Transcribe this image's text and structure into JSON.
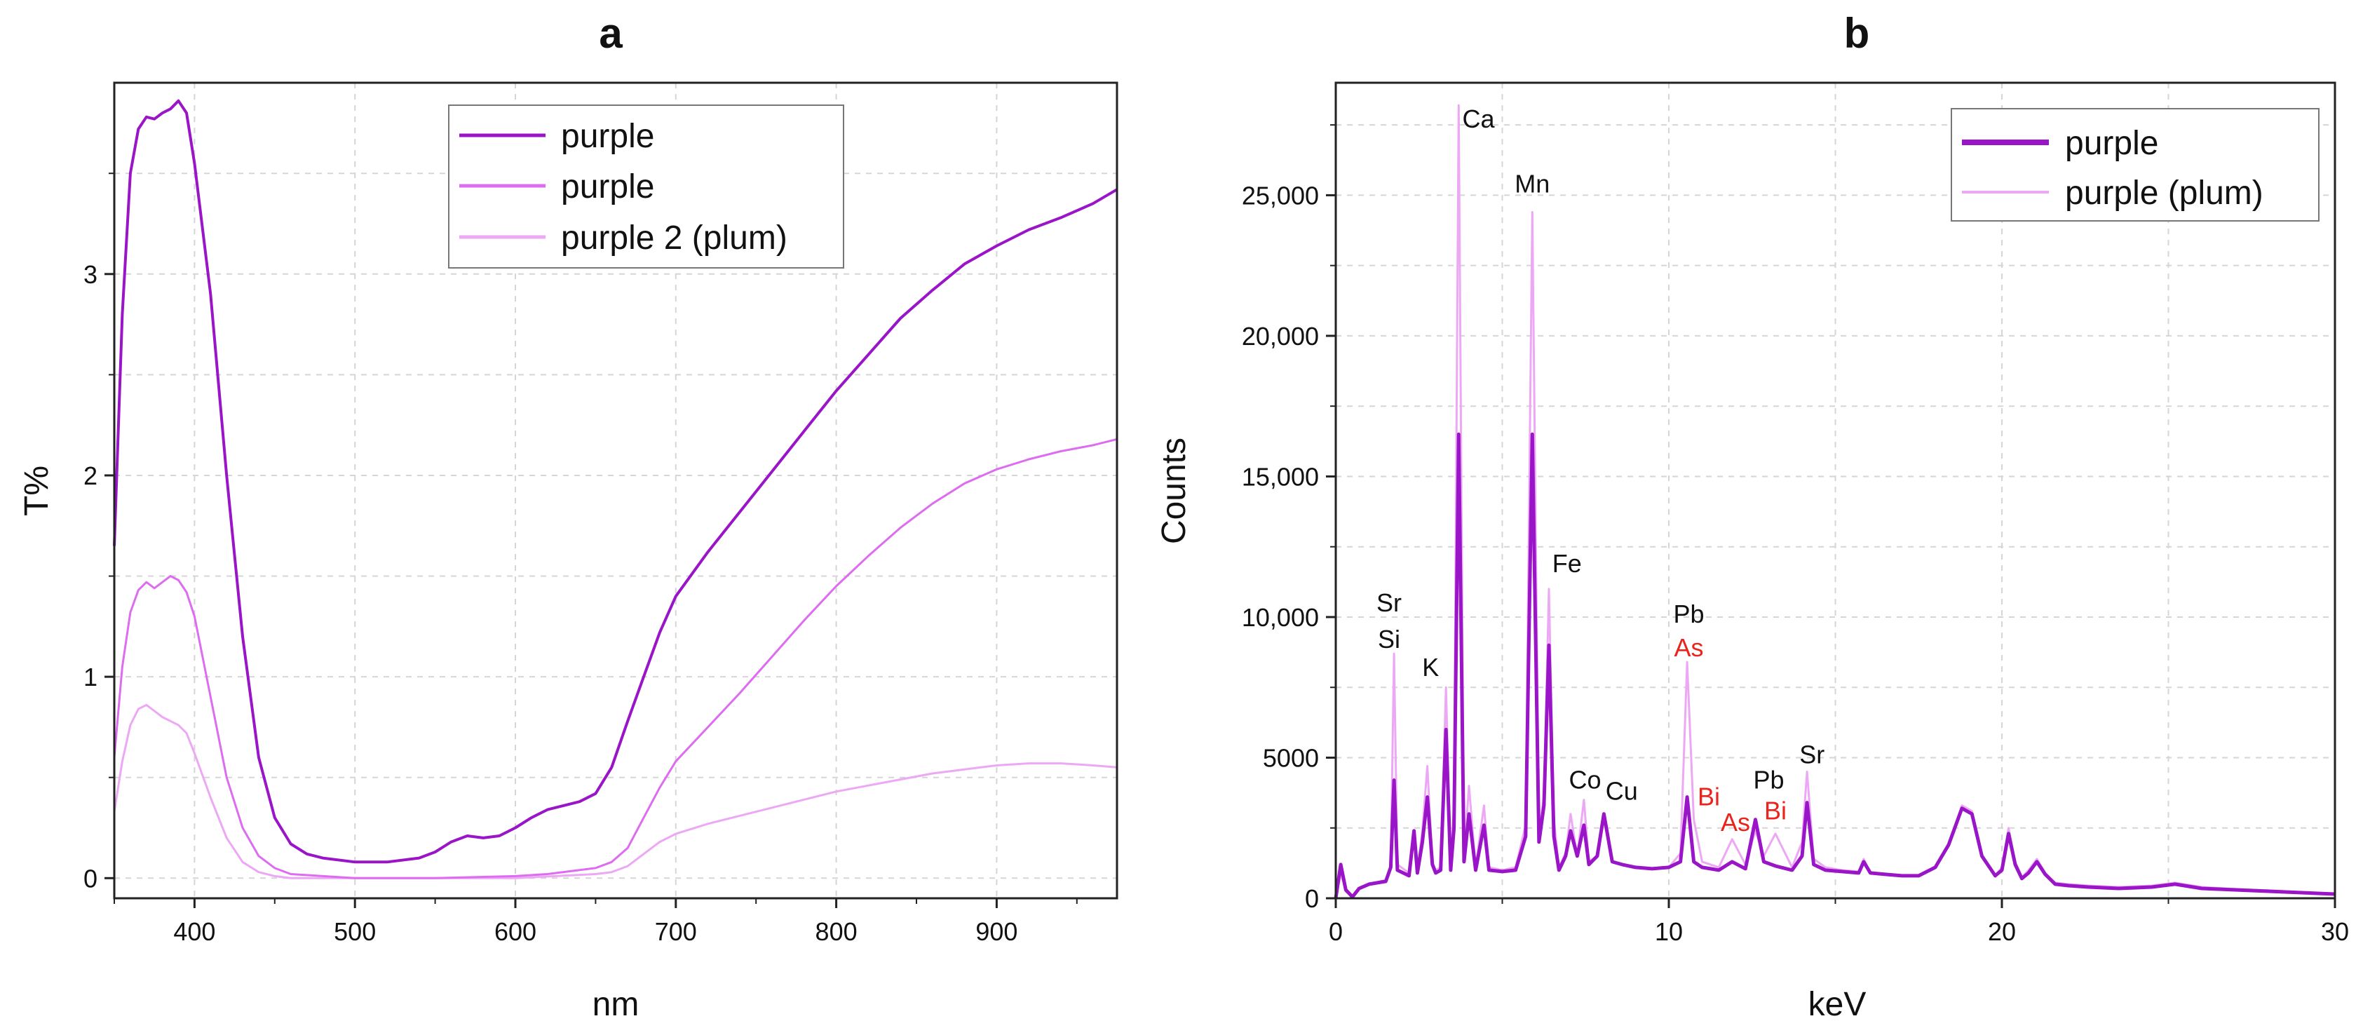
{
  "colors": {
    "dark": "#9a14c8",
    "medium": "#dd6cf0",
    "light": "#eda8f5",
    "red_label": "#e8241c",
    "black_label": "#111111"
  },
  "chart_data": [
    {
      "id": "a",
      "type": "line",
      "panel_label": "a",
      "title": "",
      "xlabel": "nm",
      "ylabel": "T%",
      "xlim": [
        350,
        975
      ],
      "ylim": [
        -0.1,
        3.95
      ],
      "xticks": [
        400,
        500,
        600,
        700,
        800,
        900
      ],
      "xtick_labels": [
        "400",
        "500",
        "600",
        "700",
        "800",
        "900"
      ],
      "yticks": [
        0,
        1,
        2,
        3
      ],
      "ytick_labels": [
        "0",
        "1",
        "2",
        "3"
      ],
      "grid": true,
      "legend_position": "top-right",
      "legend": [
        "purple",
        "purple",
        "purple 2 (plum)"
      ],
      "series": [
        {
          "name": "purple",
          "color": "#9a14c8",
          "x": [
            350,
            355,
            360,
            365,
            370,
            375,
            380,
            385,
            390,
            395,
            400,
            410,
            420,
            430,
            440,
            450,
            460,
            470,
            480,
            500,
            520,
            540,
            550,
            560,
            570,
            580,
            590,
            600,
            610,
            620,
            640,
            650,
            660,
            670,
            680,
            690,
            700,
            720,
            740,
            760,
            780,
            800,
            820,
            840,
            860,
            880,
            900,
            920,
            940,
            960,
            975
          ],
          "y": [
            1.65,
            2.8,
            3.5,
            3.72,
            3.78,
            3.77,
            3.8,
            3.82,
            3.86,
            3.8,
            3.55,
            2.9,
            2.0,
            1.2,
            0.6,
            0.3,
            0.17,
            0.12,
            0.1,
            0.08,
            0.08,
            0.1,
            0.13,
            0.18,
            0.21,
            0.2,
            0.21,
            0.25,
            0.3,
            0.34,
            0.38,
            0.42,
            0.55,
            0.78,
            1.0,
            1.22,
            1.4,
            1.62,
            1.82,
            2.02,
            2.22,
            2.42,
            2.6,
            2.78,
            2.92,
            3.05,
            3.14,
            3.22,
            3.28,
            3.35,
            3.42
          ]
        },
        {
          "name": "purple",
          "color": "#dd6cf0",
          "x": [
            350,
            355,
            360,
            365,
            370,
            375,
            380,
            385,
            390,
            395,
            400,
            410,
            420,
            430,
            440,
            450,
            460,
            480,
            500,
            550,
            600,
            620,
            650,
            660,
            670,
            680,
            690,
            700,
            720,
            740,
            760,
            780,
            800,
            820,
            840,
            860,
            880,
            900,
            920,
            940,
            960,
            975
          ],
          "y": [
            0.6,
            1.05,
            1.32,
            1.43,
            1.47,
            1.44,
            1.47,
            1.5,
            1.48,
            1.42,
            1.3,
            0.9,
            0.5,
            0.25,
            0.11,
            0.05,
            0.02,
            0.01,
            0.0,
            0.0,
            0.01,
            0.02,
            0.05,
            0.08,
            0.15,
            0.3,
            0.45,
            0.58,
            0.75,
            0.92,
            1.1,
            1.28,
            1.45,
            1.6,
            1.74,
            1.86,
            1.96,
            2.03,
            2.08,
            2.12,
            2.15,
            2.18
          ]
        },
        {
          "name": "purple 2 (plum)",
          "color": "#eda8f5",
          "x": [
            350,
            355,
            360,
            365,
            370,
            375,
            380,
            385,
            390,
            395,
            400,
            410,
            420,
            430,
            440,
            450,
            460,
            480,
            500,
            550,
            600,
            650,
            660,
            670,
            680,
            690,
            700,
            720,
            740,
            760,
            780,
            800,
            820,
            840,
            860,
            880,
            900,
            920,
            940,
            960,
            975
          ],
          "y": [
            0.33,
            0.58,
            0.76,
            0.84,
            0.86,
            0.83,
            0.8,
            0.78,
            0.76,
            0.72,
            0.62,
            0.4,
            0.2,
            0.08,
            0.03,
            0.01,
            0.0,
            0.0,
            0.0,
            0.0,
            0.0,
            0.02,
            0.03,
            0.06,
            0.12,
            0.18,
            0.22,
            0.27,
            0.31,
            0.35,
            0.39,
            0.43,
            0.46,
            0.49,
            0.52,
            0.54,
            0.56,
            0.57,
            0.57,
            0.56,
            0.55
          ]
        }
      ]
    },
    {
      "id": "b",
      "type": "line",
      "panel_label": "b",
      "title": "",
      "xlabel": "keV",
      "ylabel": "Counts",
      "xlim": [
        0,
        30
      ],
      "ylim": [
        0,
        29000
      ],
      "xticks": [
        0,
        10,
        20,
        30
      ],
      "xtick_labels": [
        "0",
        "10",
        "20",
        "30"
      ],
      "yticks": [
        0,
        5000,
        10000,
        15000,
        20000,
        25000
      ],
      "ytick_labels": [
        "0",
        "5000",
        "10,000",
        "15,000",
        "20,000",
        "25,000"
      ],
      "grid": true,
      "legend_position": "top-right",
      "legend": [
        "purple",
        "purple (plum)"
      ],
      "series": [
        {
          "name": "purple",
          "color": "#9a14c8",
          "x": [
            0,
            0.15,
            0.3,
            0.5,
            0.7,
            1.0,
            1.5,
            1.65,
            1.75,
            1.85,
            2.2,
            2.35,
            2.45,
            2.6,
            2.75,
            2.9,
            3.0,
            3.15,
            3.31,
            3.45,
            3.55,
            3.69,
            3.85,
            4.0,
            4.2,
            4.45,
            4.6,
            5.0,
            5.4,
            5.7,
            5.9,
            6.1,
            6.25,
            6.4,
            6.55,
            6.7,
            6.9,
            7.05,
            7.25,
            7.45,
            7.6,
            7.85,
            8.05,
            8.3,
            8.6,
            9.0,
            9.5,
            10.0,
            10.35,
            10.55,
            10.75,
            11.0,
            11.5,
            11.9,
            12.3,
            12.6,
            12.85,
            13.2,
            13.7,
            14.0,
            14.15,
            14.35,
            14.7,
            15.2,
            15.7,
            15.85,
            16.05,
            16.5,
            17.0,
            17.5,
            18.0,
            18.4,
            18.8,
            19.1,
            19.4,
            19.8,
            20.0,
            20.2,
            20.4,
            20.6,
            20.8,
            21.05,
            21.3,
            21.6,
            22.0,
            22.6,
            23.5,
            24.5,
            25.2,
            26.0,
            27.0,
            28.0,
            29.0,
            30.0
          ],
          "y": [
            0,
            1200,
            300,
            50,
            350,
            500,
            600,
            1100,
            4200,
            1000,
            800,
            2400,
            900,
            2000,
            3600,
            1200,
            900,
            1000,
            6000,
            1000,
            2500,
            16500,
            1300,
            3000,
            1000,
            2600,
            1000,
            950,
            1000,
            2200,
            16500,
            2000,
            3300,
            9000,
            2200,
            1000,
            1500,
            2400,
            1500,
            2600,
            1200,
            1500,
            3000,
            1300,
            1200,
            1100,
            1050,
            1100,
            1300,
            3600,
            1300,
            1100,
            1000,
            1300,
            1050,
            2800,
            1300,
            1150,
            1000,
            1500,
            3400,
            1200,
            1000,
            950,
            900,
            1300,
            900,
            850,
            800,
            800,
            1100,
            1900,
            3200,
            3000,
            1500,
            800,
            1000,
            2300,
            1200,
            700,
            900,
            1300,
            850,
            500,
            450,
            400,
            350,
            400,
            500,
            350,
            300,
            250,
            200,
            150
          ]
        },
        {
          "name": "purple (plum)",
          "color": "#eda8f5",
          "x": [
            0,
            0.15,
            0.3,
            0.5,
            0.7,
            1.0,
            1.5,
            1.65,
            1.75,
            1.85,
            2.2,
            2.35,
            2.45,
            2.6,
            2.75,
            2.9,
            3.0,
            3.15,
            3.31,
            3.45,
            3.55,
            3.69,
            3.85,
            4.0,
            4.2,
            4.45,
            4.6,
            5.0,
            5.4,
            5.7,
            5.9,
            6.1,
            6.25,
            6.4,
            6.55,
            6.7,
            6.9,
            7.05,
            7.25,
            7.45,
            7.6,
            7.85,
            8.05,
            8.3,
            8.6,
            9.0,
            9.5,
            10.0,
            10.35,
            10.55,
            10.75,
            11.0,
            11.5,
            11.9,
            12.3,
            12.6,
            12.85,
            13.2,
            13.7,
            14.0,
            14.15,
            14.35,
            14.7,
            15.2,
            15.7,
            15.85,
            16.05,
            16.5,
            17.0,
            17.5,
            18.0,
            18.4,
            18.8,
            19.1,
            19.4,
            19.8,
            20.0,
            20.2,
            20.4,
            20.6,
            20.8,
            21.05,
            21.3,
            21.6,
            22.0,
            22.6,
            23.5,
            24.5,
            25.2,
            26.0,
            27.0,
            28.0,
            29.0,
            30.0
          ],
          "y": [
            0,
            900,
            250,
            50,
            350,
            500,
            650,
            1200,
            8700,
            1200,
            900,
            2200,
            1000,
            2400,
            4700,
            1300,
            1000,
            1100,
            7500,
            1100,
            3300,
            28200,
            1400,
            4000,
            1100,
            3300,
            1100,
            1000,
            1100,
            2600,
            24400,
            2400,
            3600,
            11000,
            2800,
            1100,
            1600,
            3000,
            1500,
            3500,
            1300,
            1500,
            2800,
            1300,
            1200,
            1100,
            1050,
            1100,
            1600,
            8400,
            2800,
            1300,
            1100,
            2100,
            1200,
            2400,
            1500,
            2300,
            1100,
            2000,
            4500,
            1400,
            1100,
            1000,
            950,
            1400,
            900,
            850,
            800,
            800,
            1100,
            1900,
            3300,
            3100,
            1500,
            800,
            1100,
            2500,
            1300,
            750,
            1000,
            1400,
            900,
            550,
            500,
            450,
            400,
            450,
            550,
            400,
            330,
            280,
            220,
            150
          ]
        }
      ],
      "annotations": [
        {
          "text": "Ca",
          "x": 3.8,
          "y": 27400,
          "color": "#111111",
          "anchor": "start"
        },
        {
          "text": "Mn",
          "x": 5.9,
          "y": 25100,
          "color": "#111111",
          "anchor": "middle"
        },
        {
          "text": "Fe",
          "x": 6.5,
          "y": 11600,
          "color": "#111111",
          "anchor": "start"
        },
        {
          "text": "Sr",
          "x": 1.6,
          "y": 10200,
          "color": "#111111",
          "anchor": "middle"
        },
        {
          "text": "Si",
          "x": 1.6,
          "y": 8900,
          "color": "#111111",
          "anchor": "middle"
        },
        {
          "text": "K",
          "x": 3.1,
          "y": 7900,
          "color": "#111111",
          "anchor": "end"
        },
        {
          "text": "Pb",
          "x": 10.6,
          "y": 9800,
          "color": "#111111",
          "anchor": "middle"
        },
        {
          "text": "As",
          "x": 10.6,
          "y": 8600,
          "color": "#e8241c",
          "anchor": "middle"
        },
        {
          "text": "Co",
          "x": 7.0,
          "y": 3900,
          "color": "#111111",
          "anchor": "start"
        },
        {
          "text": "Cu",
          "x": 8.1,
          "y": 3500,
          "color": "#111111",
          "anchor": "start"
        },
        {
          "text": "Bi",
          "x": 11.2,
          "y": 3300,
          "color": "#e8241c",
          "anchor": "middle"
        },
        {
          "text": "As",
          "x": 12.0,
          "y": 2400,
          "color": "#e8241c",
          "anchor": "middle"
        },
        {
          "text": "Pb",
          "x": 13.0,
          "y": 3900,
          "color": "#111111",
          "anchor": "middle"
        },
        {
          "text": "Bi",
          "x": 13.2,
          "y": 2800,
          "color": "#e8241c",
          "anchor": "middle"
        },
        {
          "text": "Sr",
          "x": 14.3,
          "y": 4800,
          "color": "#111111",
          "anchor": "middle"
        }
      ]
    }
  ]
}
